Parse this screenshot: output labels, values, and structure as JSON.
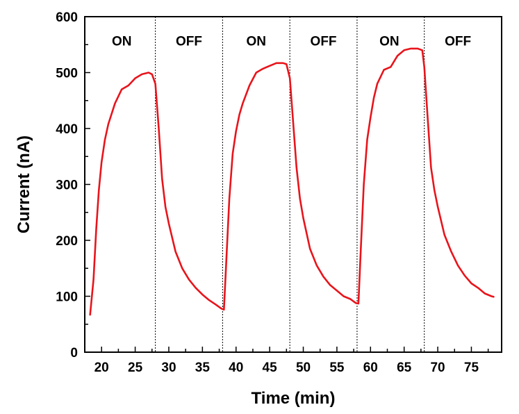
{
  "chart_data": {
    "type": "line",
    "xlabel": "Time (min)",
    "ylabel": "Current (nA)",
    "xlim": [
      17.5,
      79.5
    ],
    "ylim": [
      0,
      600
    ],
    "x_ticks": [
      20,
      25,
      30,
      35,
      40,
      45,
      50,
      55,
      60,
      65,
      70,
      75
    ],
    "y_ticks": [
      0,
      100,
      200,
      300,
      400,
      500,
      600
    ],
    "grid": false,
    "series_color": "#e8141b",
    "switch_lines": [
      28,
      38,
      48,
      58,
      68
    ],
    "phase_labels": [
      {
        "text": "ON",
        "x": 23
      },
      {
        "text": "OFF",
        "x": 33
      },
      {
        "text": "ON",
        "x": 43
      },
      {
        "text": "OFF",
        "x": 53
      },
      {
        "text": "ON",
        "x": 62.8
      },
      {
        "text": "OFF",
        "x": 73
      }
    ],
    "phase_label_y": 557,
    "series": [
      {
        "x": [
          18.3,
          18.8,
          19.2,
          19.6,
          20.0,
          20.5,
          21.0,
          22.0,
          23.0,
          24.0,
          25.0,
          26.0,
          27.0,
          27.5,
          28.0,
          28.5,
          29.0,
          29.5,
          30.0,
          31.0,
          32.0,
          33.0,
          34.0,
          35.0,
          36.0,
          37.0,
          37.8,
          38.2,
          38.5,
          39.0,
          39.5,
          40.0,
          40.5,
          41.0,
          42.0,
          43.0,
          44.0,
          45.0,
          46.0,
          47.0,
          47.5,
          48.0,
          48.5,
          49.0,
          49.5,
          50.0,
          51.0,
          52.0,
          53.0,
          54.0,
          55.0,
          56.0,
          57.0,
          57.8,
          58.2,
          58.5,
          59.0,
          59.5,
          60.0,
          60.5,
          61.0,
          62.0,
          63.0,
          64.0,
          65.0,
          66.0,
          67.0,
          67.7,
          68.0,
          68.5,
          69.0,
          69.5,
          70.0,
          71.0,
          72.0,
          73.0,
          74.0,
          75.0,
          76.0,
          77.0,
          78.0,
          78.3
        ],
        "y": [
          67,
          130,
          220,
          290,
          340,
          380,
          408,
          445,
          470,
          477,
          490,
          497,
          500,
          497,
          480,
          400,
          310,
          260,
          230,
          180,
          150,
          130,
          115,
          103,
          93,
          85,
          78,
          76,
          150,
          275,
          355,
          395,
          425,
          445,
          477,
          500,
          507,
          512,
          517,
          517,
          515,
          490,
          410,
          330,
          275,
          240,
          185,
          155,
          135,
          120,
          110,
          100,
          95,
          88,
          87,
          170,
          300,
          380,
          420,
          455,
          480,
          505,
          510,
          530,
          540,
          543,
          543,
          540,
          510,
          420,
          330,
          290,
          260,
          210,
          180,
          155,
          137,
          123,
          115,
          105,
          100,
          99
        ]
      }
    ]
  }
}
